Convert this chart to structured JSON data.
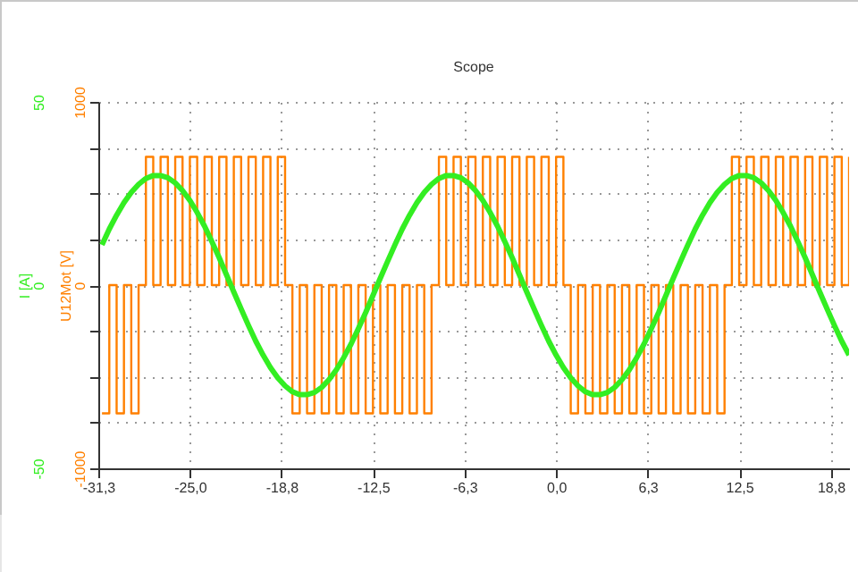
{
  "chart_data": {
    "type": "line",
    "title": "Scope",
    "ylabel": "U12Mot [V]",
    "y2label": "I [A]",
    "xlim": [
      -31.25,
      20
    ],
    "xticks": [
      {
        "value": -31.25,
        "label": "-31,3"
      },
      {
        "value": -25,
        "label": "-25,0"
      },
      {
        "value": -18.75,
        "label": "-18,8"
      },
      {
        "value": -12.5,
        "label": "-12,5"
      },
      {
        "value": -6.25,
        "label": "-6,3"
      },
      {
        "value": 0,
        "label": "0,0"
      },
      {
        "value": 6.25,
        "label": "6,3"
      },
      {
        "value": 12.5,
        "label": "12,5"
      },
      {
        "value": 18.75,
        "label": "18,8"
      }
    ],
    "ylim": [
      -1000,
      1000
    ],
    "yticks": [
      -1000,
      {
        "value": -750,
        "label": null
      },
      {
        "value": -500,
        "label": null
      },
      {
        "value": -250,
        "label": null
      },
      0,
      {
        "value": 250,
        "label": null
      },
      {
        "value": 500,
        "label": null
      },
      {
        "value": 750,
        "label": null
      },
      1000
    ],
    "y2lim": [
      -50,
      50
    ],
    "y2ticks": [
      -50,
      0,
      50
    ],
    "grid": true,
    "x": [
      -31,
      -30.5,
      -30,
      -29.5,
      -29,
      -28.5,
      -28,
      -27.5,
      -27,
      -26.5,
      -26,
      -25.5,
      -25,
      -24.5,
      -24,
      -23.5,
      -23,
      -22.5,
      -22,
      -21.5,
      -21,
      -20.5,
      -20,
      -19.5,
      -19,
      -18.5,
      -18,
      -17.5,
      -17,
      -16.5,
      -16,
      -15.5,
      -15,
      -14.5,
      -14,
      -13.5,
      -13,
      -12.5,
      -12,
      -11.5,
      -11,
      -10.5,
      -10,
      -9.5,
      -9,
      -8.5,
      -8,
      -7.5,
      -7,
      -6.5,
      -6,
      -5.5,
      -5,
      -4.5,
      -4,
      -3.5,
      -3,
      -2.5,
      -2,
      -1.5,
      -1,
      -0.5,
      0,
      0.5,
      1,
      1.5,
      2,
      2.5,
      3,
      3.5,
      4,
      4.5,
      5,
      5.5,
      6,
      6.5,
      7,
      7.5,
      8,
      8.5,
      9,
      9.5,
      10,
      10.5,
      11,
      11.5,
      12,
      12.5,
      13,
      13.5,
      14,
      14.5,
      15,
      15.5,
      16,
      16.5,
      17,
      17.5,
      18,
      18.5,
      19,
      19.5,
      20
    ],
    "series": [
      {
        "type": "step",
        "color": "#ff8000",
        "values": [
          -700,
          0,
          -700,
          0,
          -700,
          0,
          700,
          0,
          700,
          0,
          700,
          0,
          700,
          0,
          700,
          0,
          700,
          0,
          700,
          0,
          700,
          0,
          700,
          0,
          700,
          0,
          -700,
          0,
          -700,
          0,
          -700,
          0,
          -700,
          0,
          -700,
          0,
          -700,
          0,
          -700,
          0,
          -700,
          0,
          -700,
          0,
          -700,
          0,
          700,
          0,
          700,
          0,
          700,
          0,
          700,
          0,
          700,
          0,
          700,
          0,
          700,
          0,
          700,
          0,
          700,
          0,
          -700,
          0,
          -700,
          0,
          -700,
          0,
          -700,
          0,
          -700,
          0,
          -700,
          0,
          -700,
          0,
          -700,
          0,
          -700,
          0,
          -700,
          0,
          -700,
          0,
          700,
          0,
          700,
          0,
          700,
          0,
          700,
          0,
          700,
          0,
          700,
          0,
          700,
          0,
          700,
          0,
          700
        ]
      },
      {
        "axis": "y2",
        "color": "#33ee22",
        "values": [
          11.0,
          15.3,
          19.1,
          22.5,
          25.3,
          27.5,
          29.1,
          29.9,
          29.9,
          29.3,
          27.9,
          25.8,
          23.1,
          19.8,
          16.1,
          11.9,
          7.5,
          2.8,
          -1.9,
          -6.5,
          -11.0,
          -15.3,
          -19.1,
          -22.5,
          -25.3,
          -27.5,
          -29.1,
          -29.9,
          -29.9,
          -29.3,
          -27.9,
          -25.8,
          -23.1,
          -19.8,
          -16.1,
          -11.9,
          -7.5,
          -2.8,
          1.9,
          6.5,
          11.0,
          15.3,
          19.1,
          22.5,
          25.3,
          27.5,
          29.1,
          29.9,
          29.9,
          29.3,
          27.9,
          25.8,
          23.1,
          19.8,
          16.1,
          11.9,
          7.5,
          2.8,
          -1.9,
          -6.5,
          -11.0,
          -15.3,
          -19.1,
          -22.5,
          -25.3,
          -27.5,
          -29.1,
          -29.9,
          -29.9,
          -29.3,
          -27.9,
          -25.8,
          -23.1,
          -19.8,
          -16.1,
          -11.9,
          -7.5,
          -2.8,
          1.9,
          6.5,
          11.0,
          15.3,
          19.1,
          22.5,
          25.3,
          27.5,
          29.1,
          29.9,
          29.9,
          29.3,
          27.9,
          25.8,
          23.1,
          19.8,
          16.1,
          11.9,
          7.5,
          2.8,
          -1.9,
          -6.5,
          -11.0,
          -15.3,
          -19.1
        ]
      }
    ]
  }
}
